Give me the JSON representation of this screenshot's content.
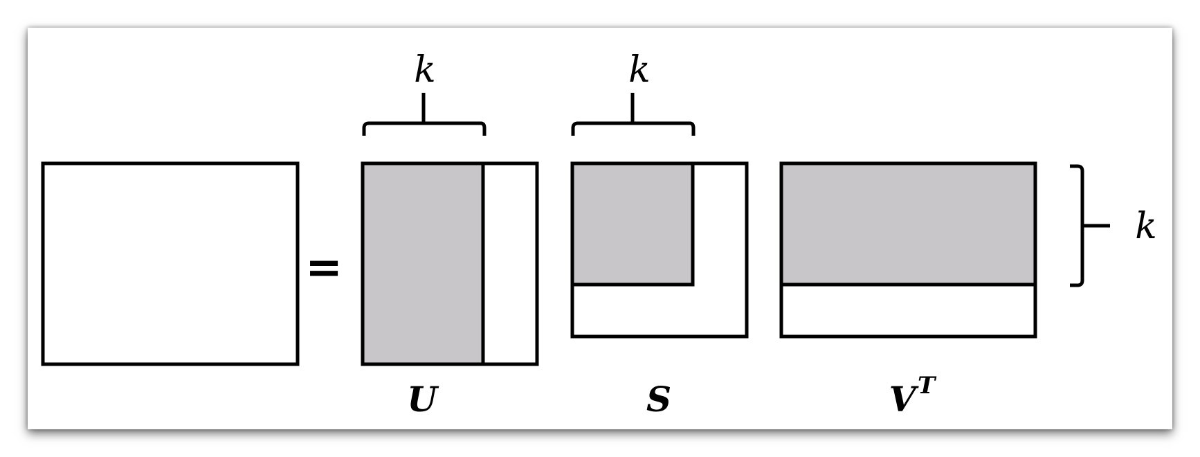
{
  "equation": {
    "equals_sign": "=",
    "k_label_u": "k",
    "k_label_s": "k",
    "k_label_vt": "k",
    "label_u": "U",
    "label_s": "S",
    "label_vt_base": "V",
    "label_vt_superscript": "T"
  },
  "colors": {
    "shaded": "#c8c6c8",
    "stroke": "#000000",
    "background": "#ffffff"
  }
}
